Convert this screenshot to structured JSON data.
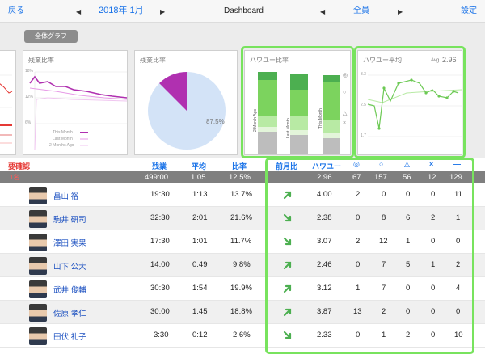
{
  "nav": {
    "back": "戻る",
    "month": "2018年 1月",
    "screen": "Dashboard",
    "member": "全員",
    "settings": "設定"
  },
  "graphs": {
    "all_graph_button": "全体グラフ",
    "overtime_line": {
      "title": "残業比率",
      "y_ticks": [
        "18%",
        "12%",
        "6%"
      ],
      "legend": [
        "This Month",
        "Last Month",
        "2 Months Ago"
      ]
    },
    "overtime_pie": {
      "title": "残業比率",
      "value_label": "87.5%",
      "value": 87.5
    },
    "power_ratio": {
      "title": "ハワユー比率",
      "x_labels": [
        "2 Month Ago",
        "Last Month",
        "This Month"
      ],
      "marks": [
        "◎",
        "○",
        "△",
        "×",
        "—"
      ]
    },
    "power_avg": {
      "title": "ハワユー平均",
      "avg_label": "Avg.",
      "avg_value": "2.96",
      "y_ticks": [
        "3.3",
        "2.5",
        "1.7"
      ]
    }
  },
  "table": {
    "headers": {
      "confirm": "要確認",
      "overtime": "残業",
      "average": "平均",
      "ratio": "比率",
      "prev_month": "前月比",
      "howayu": "ハワユー",
      "m1": "◎",
      "m2": "○",
      "m3": "△",
      "m4": "×",
      "m5": "—"
    },
    "total": {
      "label": "1名",
      "overtime": "499:00",
      "average": "1:05",
      "ratio": "12.5%",
      "howayu": "2.96",
      "m1": "67",
      "m2": "157",
      "m3": "56",
      "m4": "12",
      "m5": "129"
    },
    "rows": [
      {
        "name": "畠山 裕",
        "overtime": "19:30",
        "average": "1:13",
        "ratio": "13.7%",
        "trend": "up",
        "howayu": "4.00",
        "m1": "2",
        "m2": "0",
        "m3": "0",
        "m4": "0",
        "m5": "11"
      },
      {
        "name": "駒井 研司",
        "overtime": "32:30",
        "average": "2:01",
        "ratio": "21.6%",
        "trend": "down",
        "howayu": "2.38",
        "m1": "0",
        "m2": "8",
        "m3": "6",
        "m4": "2",
        "m5": "1"
      },
      {
        "name": "澤田 実果",
        "overtime": "17:30",
        "average": "1:01",
        "ratio": "11.7%",
        "trend": "down",
        "howayu": "3.07",
        "m1": "2",
        "m2": "12",
        "m3": "1",
        "m4": "0",
        "m5": "0"
      },
      {
        "name": "山下 公大",
        "overtime": "14:00",
        "average": "0:49",
        "ratio": "9.8%",
        "trend": "up",
        "howayu": "2.46",
        "m1": "0",
        "m2": "7",
        "m3": "5",
        "m4": "1",
        "m5": "2"
      },
      {
        "name": "武井 俊輔",
        "overtime": "30:30",
        "average": "1:54",
        "ratio": "19.9%",
        "trend": "up",
        "howayu": "3.12",
        "m1": "1",
        "m2": "7",
        "m3": "0",
        "m4": "0",
        "m5": "4"
      },
      {
        "name": "佐原 孝仁",
        "overtime": "30:00",
        "average": "1:45",
        "ratio": "18.8%",
        "trend": "up",
        "howayu": "3.87",
        "m1": "13",
        "m2": "2",
        "m3": "0",
        "m4": "0",
        "m5": "0"
      },
      {
        "name": "田伏 礼子",
        "overtime": "3:30",
        "average": "0:12",
        "ratio": "2.6%",
        "trend": "down",
        "howayu": "2.33",
        "m1": "0",
        "m2": "1",
        "m3": "2",
        "m4": "0",
        "m5": "10"
      }
    ]
  },
  "colors": {
    "accent": "#1a73e8",
    "highlight": "#78e35e",
    "pie": "#b030b0",
    "alert": "#e53935",
    "trend": "#4caf50"
  }
}
